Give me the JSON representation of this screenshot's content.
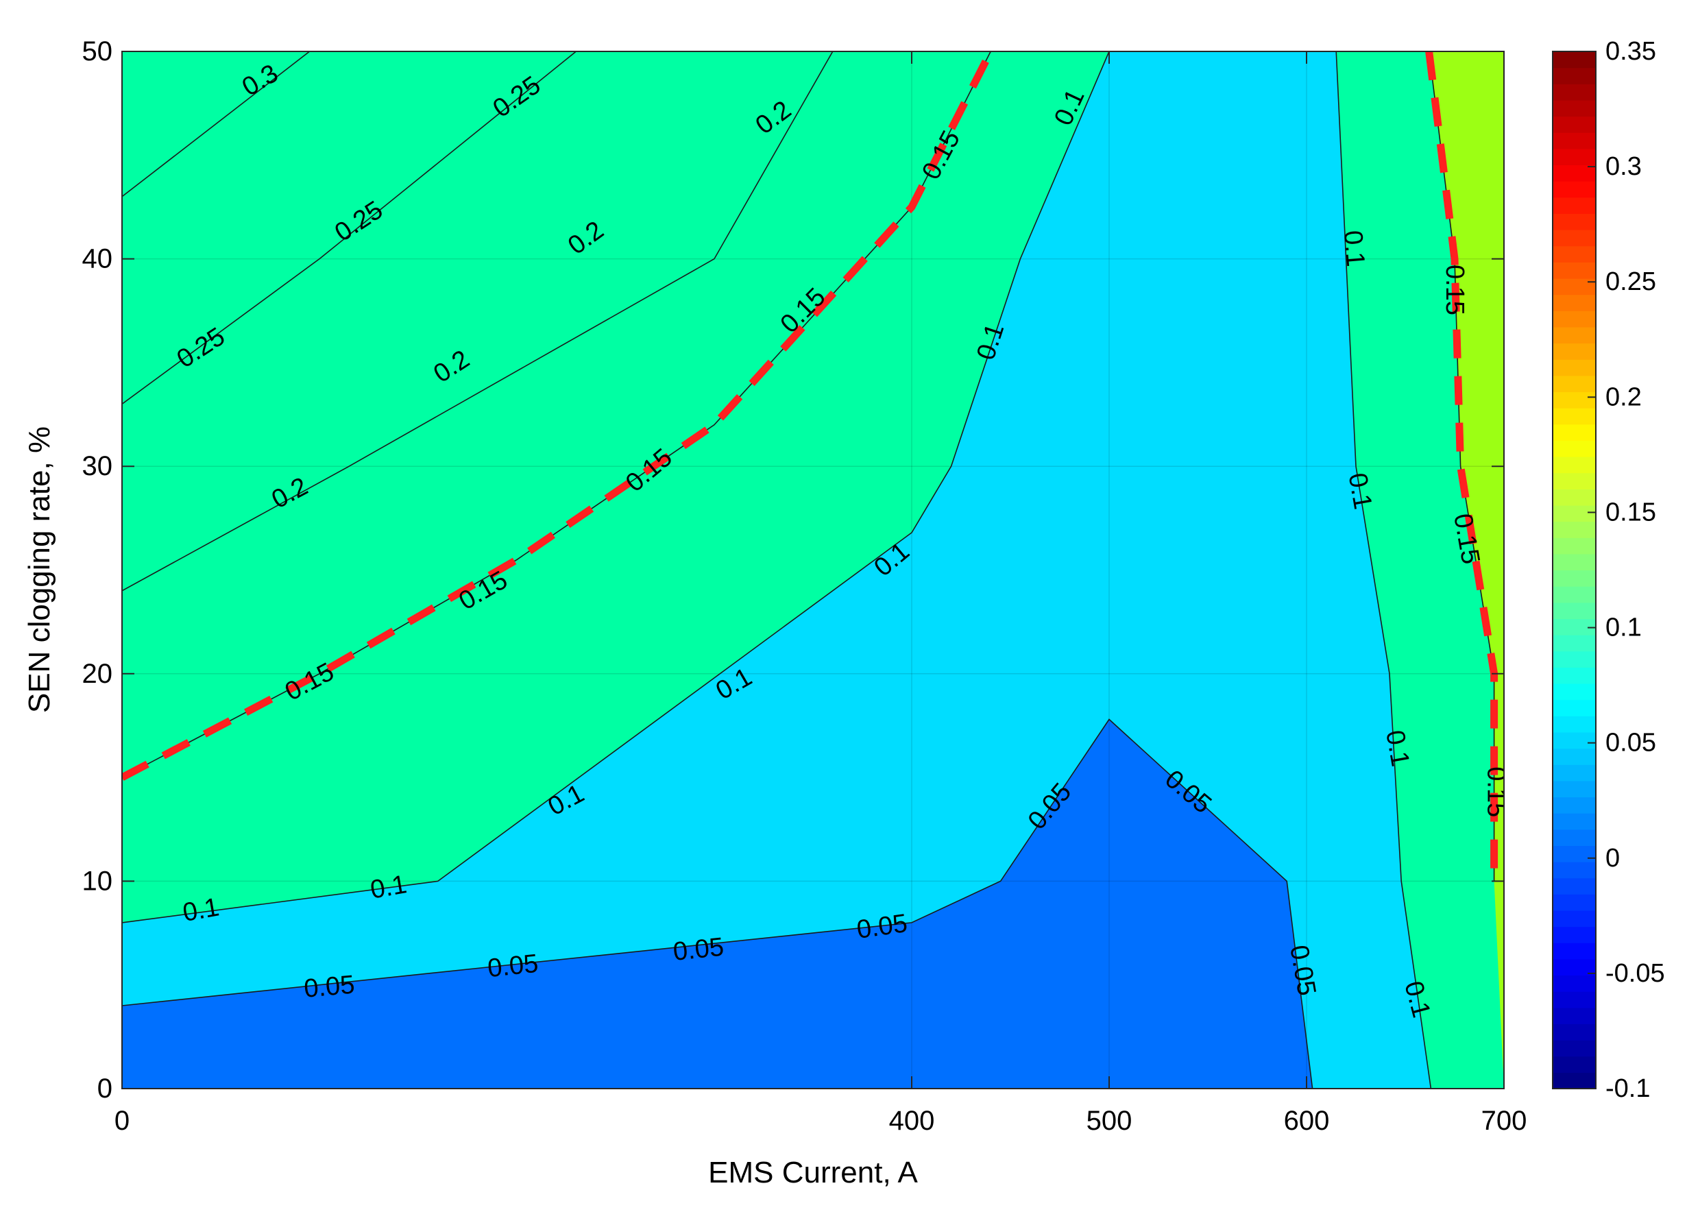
{
  "chart_data": {
    "type": "contour",
    "xlabel": "EMS Current, A",
    "ylabel": "SEN clogging rate, %",
    "xlim": [
      0,
      700
    ],
    "ylim": [
      0,
      50
    ],
    "x_ticks": [
      {
        "value": 0,
        "label": "0"
      },
      {
        "value": 400,
        "label": "400"
      },
      {
        "value": 500,
        "label": "500"
      },
      {
        "value": 600,
        "label": "600"
      },
      {
        "value": 700,
        "label": "700"
      }
    ],
    "y_ticks": [
      {
        "value": 0,
        "label": "0"
      },
      {
        "value": 10,
        "label": "10"
      },
      {
        "value": 20,
        "label": "20"
      },
      {
        "value": 30,
        "label": "30"
      },
      {
        "value": 40,
        "label": "40"
      },
      {
        "value": 50,
        "label": "50"
      }
    ],
    "grid": true,
    "colorbar": {
      "min": -0.1,
      "max": 0.35,
      "colormap": "jet",
      "tick_labels": [
        {
          "value": 0.35,
          "label": "0.35"
        },
        {
          "value": 0.3,
          "label": "0.3"
        },
        {
          "value": 0.25,
          "label": "0.25"
        },
        {
          "value": 0.2,
          "label": "0.2"
        },
        {
          "value": 0.15,
          "label": "0.15"
        },
        {
          "value": 0.1,
          "label": "0.1"
        },
        {
          "value": 0.05,
          "label": "0.05"
        },
        {
          "value": 0,
          "label": "0"
        },
        {
          "value": -0.05,
          "label": "-0.05"
        },
        {
          "value": -0.1,
          "label": "-0.1"
        }
      ]
    },
    "fill_colors": {
      "lt_0.05": "#0070ff",
      "0.05_0.1": "#00ddff",
      "0.1_0.15": "#00ffa3",
      "0.15_0.2": "#9cff14",
      "0.2_0.25": "#ffcc00",
      "0.25_0.3": "#ff6600",
      "gt_0.3": "#ff0000"
    },
    "highlight_color": "#ff2020",
    "contours": [
      {
        "level": 0.05,
        "points": [
          [
            0,
            4
          ],
          [
            400,
            8
          ],
          [
            445,
            10
          ],
          [
            500,
            17.8
          ],
          [
            590,
            10
          ],
          [
            603,
            0
          ]
        ]
      },
      {
        "level": 0.1,
        "points": [
          [
            0,
            8
          ],
          [
            160,
            10
          ],
          [
            400,
            26.8
          ],
          [
            420,
            30
          ],
          [
            455,
            40
          ],
          [
            500,
            50
          ]
        ]
      },
      {
        "level": 0.1,
        "points": [
          [
            615,
            50
          ],
          [
            625,
            30
          ],
          [
            642,
            20
          ],
          [
            648,
            10
          ],
          [
            663,
            0
          ]
        ]
      },
      {
        "level": 0.15,
        "points": [
          [
            0,
            15
          ],
          [
            100,
            20
          ],
          [
            200,
            25.5
          ],
          [
            300,
            32
          ],
          [
            400,
            42.5
          ],
          [
            440,
            50
          ]
        ],
        "highlighted": true
      },
      {
        "level": 0.15,
        "points": [
          [
            662,
            50
          ],
          [
            675,
            40
          ],
          [
            678,
            30
          ],
          [
            695,
            20
          ],
          [
            695,
            10
          ]
        ],
        "highlighted": true
      },
      {
        "level": 0.2,
        "points": [
          [
            0,
            24
          ],
          [
            115,
            30
          ],
          [
            300,
            40
          ],
          [
            360,
            50
          ]
        ]
      },
      {
        "level": 0.25,
        "points": [
          [
            0,
            33
          ],
          [
            100,
            40
          ],
          [
            230,
            50
          ]
        ]
      },
      {
        "level": 0.3,
        "points": [
          [
            0,
            43
          ],
          [
            95,
            50
          ]
        ]
      }
    ],
    "labels": [
      {
        "text": "0.3",
        "x": 70,
        "y": 48.6,
        "angle": -30
      },
      {
        "text": "0.25",
        "x": 200,
        "y": 47.8,
        "angle": -35
      },
      {
        "text": "0.25",
        "x": 120,
        "y": 41.8,
        "angle": -33
      },
      {
        "text": "0.25",
        "x": 40,
        "y": 35.7,
        "angle": -33
      },
      {
        "text": "0.2",
        "x": 330,
        "y": 46.8,
        "angle": -37
      },
      {
        "text": "0.2",
        "x": 235,
        "y": 41,
        "angle": -36
      },
      {
        "text": "0.2",
        "x": 167,
        "y": 34.8,
        "angle": -33
      },
      {
        "text": "0.2",
        "x": 85,
        "y": 28.7,
        "angle": -28
      },
      {
        "text": "0.15",
        "x": 415,
        "y": 45,
        "angle": -62
      },
      {
        "text": "0.15",
        "x": 345,
        "y": 37.5,
        "angle": -45
      },
      {
        "text": "0.15",
        "x": 267,
        "y": 29.8,
        "angle": -40
      },
      {
        "text": "0.15",
        "x": 183,
        "y": 24,
        "angle": -30
      },
      {
        "text": "0.15",
        "x": 95,
        "y": 19.6,
        "angle": -28
      },
      {
        "text": "0.15",
        "x": 675,
        "y": 38.5,
        "angle": 90
      },
      {
        "text": "0.15",
        "x": 681,
        "y": 26.5,
        "angle": 80
      },
      {
        "text": "0.15",
        "x": 696,
        "y": 14.3,
        "angle": 90
      },
      {
        "text": "0.1",
        "x": 480,
        "y": 47.3,
        "angle": -65
      },
      {
        "text": "0.1",
        "x": 440,
        "y": 36,
        "angle": -72
      },
      {
        "text": "0.1",
        "x": 390,
        "y": 25.5,
        "angle": -40
      },
      {
        "text": "0.1",
        "x": 310,
        "y": 19.5,
        "angle": -30
      },
      {
        "text": "0.1",
        "x": 225,
        "y": 13.9,
        "angle": -28
      },
      {
        "text": "0.1",
        "x": 135,
        "y": 9.7,
        "angle": -10
      },
      {
        "text": "0.1",
        "x": 40,
        "y": 8.6,
        "angle": -10
      },
      {
        "text": "0.1",
        "x": 624,
        "y": 40.5,
        "angle": 85
      },
      {
        "text": "0.1",
        "x": 627,
        "y": 28.8,
        "angle": 80
      },
      {
        "text": "0.1",
        "x": 646,
        "y": 16.4,
        "angle": 80
      },
      {
        "text": "0.1",
        "x": 656,
        "y": 4.3,
        "angle": 75
      },
      {
        "text": "0.05",
        "x": 470,
        "y": 13.6,
        "angle": -50
      },
      {
        "text": "0.05",
        "x": 540,
        "y": 14.3,
        "angle": 40
      },
      {
        "text": "0.05",
        "x": 598,
        "y": 5.7,
        "angle": 80
      },
      {
        "text": "0.05",
        "x": 385,
        "y": 7.8,
        "angle": -8
      },
      {
        "text": "0.05",
        "x": 292,
        "y": 6.7,
        "angle": -6
      },
      {
        "text": "0.05",
        "x": 198,
        "y": 5.9,
        "angle": -6
      },
      {
        "text": "0.05",
        "x": 105,
        "y": 4.9,
        "angle": -5
      }
    ]
  }
}
